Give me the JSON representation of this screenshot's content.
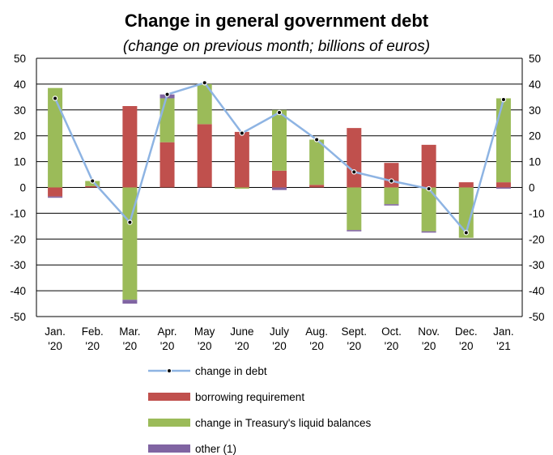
{
  "chart_data": {
    "type": "bar",
    "title": "Change in general government debt",
    "subtitle": "(change on previous month; billions of euros)",
    "categories": [
      [
        "Jan.",
        "'20"
      ],
      [
        "Feb.",
        "'20"
      ],
      [
        "Mar.",
        "'20"
      ],
      [
        "Apr.",
        "'20"
      ],
      [
        "May",
        "'20"
      ],
      [
        "June",
        "'20"
      ],
      [
        "July",
        "'20"
      ],
      [
        "Aug.",
        "'20"
      ],
      [
        "Sept.",
        "'20"
      ],
      [
        "Oct.",
        "'20"
      ],
      [
        "Nov.",
        "'20"
      ],
      [
        "Dec.",
        "'20"
      ],
      [
        "Jan.",
        "'21"
      ]
    ],
    "ylim": [
      -50,
      50
    ],
    "y_ticks": [
      50,
      40,
      30,
      20,
      10,
      0,
      -10,
      -20,
      -30,
      -40,
      -50
    ],
    "secondary_axis": "right, same scale",
    "grid": "horizontal",
    "stacked": true,
    "series": [
      {
        "name": "borrowing requirement",
        "kind": "bar",
        "color": "#c0504d",
        "values": [
          -3.5,
          0.5,
          31.5,
          17.5,
          24.5,
          21.5,
          6.5,
          1.0,
          23.0,
          9.5,
          16.5,
          2.0,
          2.0
        ]
      },
      {
        "name": "change in Treasury's liquid balances",
        "kind": "bar",
        "color": "#9bbb59",
        "values": [
          38.5,
          2.0,
          -43.5,
          17.0,
          15.5,
          -0.5,
          23.5,
          17.5,
          -16.5,
          -6.5,
          -17.0,
          -19.5,
          32.5
        ]
      },
      {
        "name": "other (1)",
        "kind": "bar",
        "color": "#8064a2",
        "values": [
          -0.5,
          0.0,
          -1.5,
          1.5,
          0.0,
          0.0,
          -1.0,
          0.0,
          -0.5,
          -0.5,
          -0.5,
          0.0,
          -0.5
        ]
      },
      {
        "name": "change in debt",
        "kind": "line",
        "color": "#8eb4e3",
        "values": [
          34.5,
          2.5,
          -13.5,
          36.0,
          40.5,
          21.0,
          29.0,
          18.5,
          6.0,
          2.5,
          -0.5,
          -17.5,
          34.0
        ]
      }
    ],
    "legend": [
      "change in debt",
      "borrowing requirement",
      "change in Treasury's liquid balances",
      "other (1)"
    ],
    "legend_position": "bottom"
  }
}
